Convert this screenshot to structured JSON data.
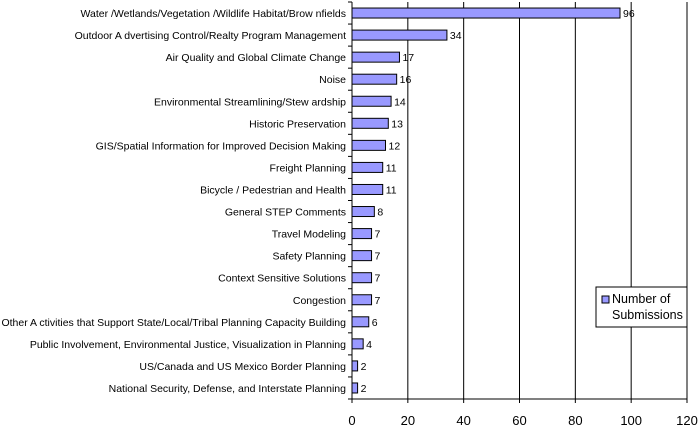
{
  "chart_data": {
    "type": "bar",
    "orientation": "horizontal",
    "categories": [
      "Water /Wetlands/Vegetation /Wildlife Habitat/Brow nfields",
      "Outdoor A dvertising Control/Realty Program Management",
      "Air Quality and Global Climate Change",
      "Noise",
      "Environmental Streamlining/Stew ardship",
      "Historic Preservation",
      "GIS/Spatial Information for Improved Decision Making",
      "Freight Planning",
      "Bicycle / Pedestrian and Health",
      "General STEP Comments",
      "Travel Modeling",
      "Safety Planning",
      "Context Sensitive Solutions",
      "Congestion",
      "Other A ctivities that Support State/Local/Tribal Planning Capacity Building",
      "Public Involvement, Environmental Justice, Visualization in Planning",
      "US/Canada and US Mexico Border Planning",
      "National Security, Defense, and Interstate Planning"
    ],
    "series": [
      {
        "name": "Number of Submissions",
        "values": [
          96,
          34,
          17,
          16,
          14,
          13,
          12,
          11,
          11,
          8,
          7,
          7,
          7,
          7,
          6,
          4,
          2,
          2
        ]
      }
    ],
    "xlim": [
      0,
      120
    ],
    "xticks": [
      0,
      20,
      40,
      60,
      80,
      100,
      120
    ],
    "grid": "vertical",
    "legend": {
      "position": "right",
      "entries": [
        "Number of",
        "Submissions"
      ]
    },
    "bar_color": "#9999ff",
    "bar_stroke": "#000000"
  }
}
